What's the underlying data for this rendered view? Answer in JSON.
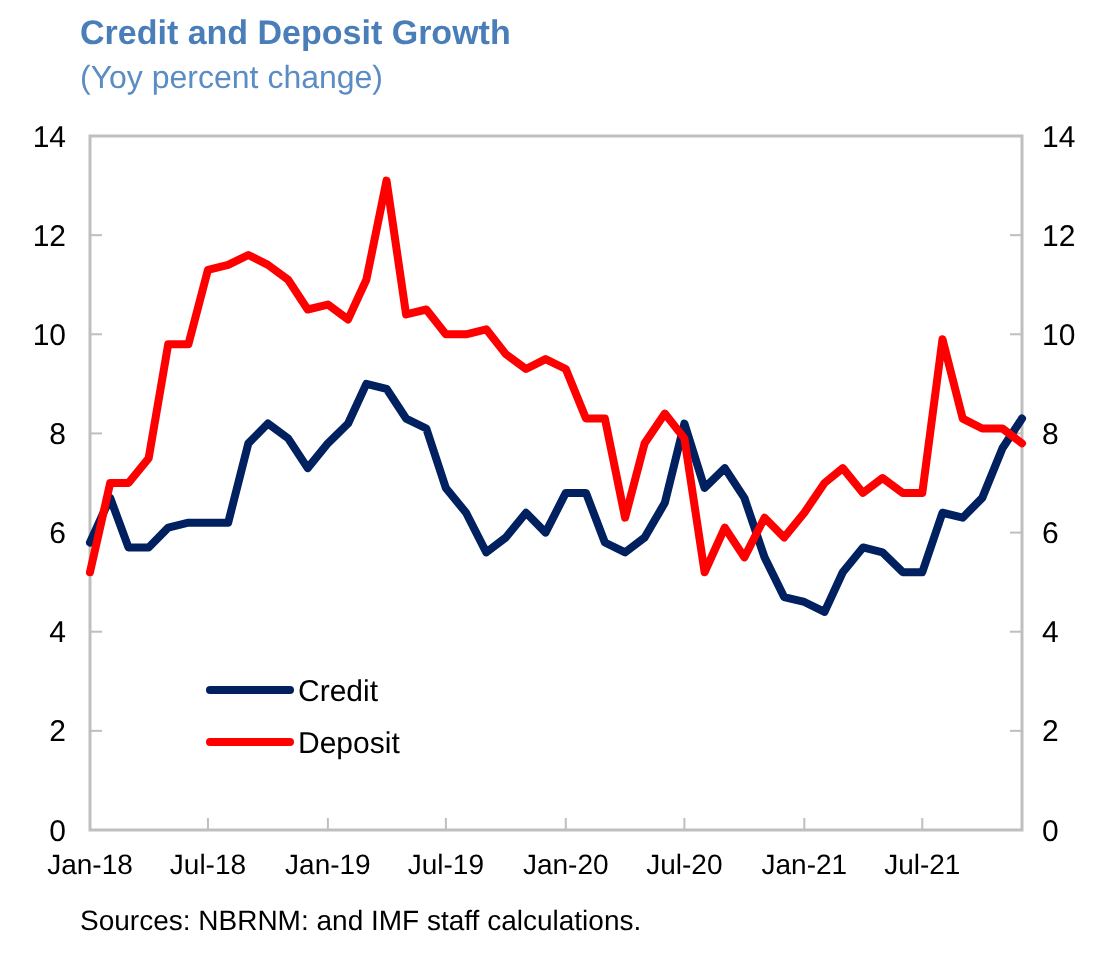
{
  "chart_data": {
    "type": "line",
    "title": "Credit and Deposit Growth",
    "subtitle": "(Yoy percent change)",
    "annotations": [
      "Sources: NBRNM: and IMF staff calculations."
    ],
    "x": [
      "2018-01",
      "2018-02",
      "2018-03",
      "2018-04",
      "2018-05",
      "2018-06",
      "2018-07",
      "2018-08",
      "2018-09",
      "2018-10",
      "2018-11",
      "2018-12",
      "2019-01",
      "2019-02",
      "2019-03",
      "2019-04",
      "2019-05",
      "2019-06",
      "2019-07",
      "2019-08",
      "2019-09",
      "2019-10",
      "2019-11",
      "2019-12",
      "2020-01",
      "2020-02",
      "2020-03",
      "2020-04",
      "2020-05",
      "2020-06",
      "2020-07",
      "2020-08",
      "2020-09",
      "2020-10",
      "2020-11",
      "2020-12",
      "2021-01",
      "2021-02",
      "2021-03",
      "2021-04",
      "2021-05",
      "2021-06",
      "2021-07",
      "2021-08",
      "2021-09",
      "2021-10",
      "2021-11",
      "2021-12"
    ],
    "series": [
      {
        "name": "Credit",
        "color": "#002060",
        "values": [
          5.8,
          6.7,
          5.7,
          5.7,
          6.1,
          6.2,
          6.2,
          6.2,
          7.8,
          8.2,
          7.9,
          7.3,
          7.8,
          8.2,
          9.0,
          8.9,
          8.3,
          8.1,
          6.9,
          6.4,
          5.6,
          5.9,
          6.4,
          6.0,
          6.8,
          6.8,
          5.8,
          5.6,
          5.9,
          6.6,
          8.2,
          6.9,
          7.3,
          6.7,
          5.5,
          4.7,
          4.6,
          4.4,
          5.2,
          5.7,
          5.6,
          5.2,
          5.2,
          6.4,
          6.3,
          6.7,
          7.7,
          8.3
        ]
      },
      {
        "name": "Deposit",
        "color": "#ff0000",
        "values": [
          5.2,
          7.0,
          7.0,
          7.5,
          9.8,
          9.8,
          11.3,
          11.4,
          11.6,
          11.4,
          11.1,
          10.5,
          10.6,
          10.3,
          11.1,
          13.1,
          10.4,
          10.5,
          10.0,
          10.0,
          10.1,
          9.6,
          9.3,
          9.5,
          9.3,
          8.3,
          8.3,
          6.3,
          7.8,
          8.4,
          7.9,
          5.2,
          6.1,
          5.5,
          6.3,
          5.9,
          6.4,
          7.0,
          7.3,
          6.8,
          7.1,
          6.8,
          6.8,
          9.9,
          8.3,
          8.1,
          8.1,
          7.8
        ]
      }
    ],
    "xlim": [
      "2018-01",
      "2021-12"
    ],
    "xticks": [
      {
        "value": "2018-01",
        "label": "Jan-18"
      },
      {
        "value": "2018-07",
        "label": "Jul-18"
      },
      {
        "value": "2019-01",
        "label": "Jan-19"
      },
      {
        "value": "2019-07",
        "label": "Jul-19"
      },
      {
        "value": "2020-01",
        "label": "Jan-20"
      },
      {
        "value": "2020-07",
        "label": "Jul-20"
      },
      {
        "value": "2021-01",
        "label": "Jan-21"
      },
      {
        "value": "2021-07",
        "label": "Jul-21"
      }
    ],
    "ylim": [
      0,
      14
    ],
    "yticks": [
      0,
      2,
      4,
      6,
      8,
      10,
      12,
      14
    ],
    "y2lim": [
      0,
      14
    ],
    "y2ticks": [
      0,
      2,
      4,
      6,
      8,
      10,
      12,
      14
    ],
    "grid": false,
    "legend": "bottom left",
    "line_style": "solid",
    "marker": "none"
  }
}
